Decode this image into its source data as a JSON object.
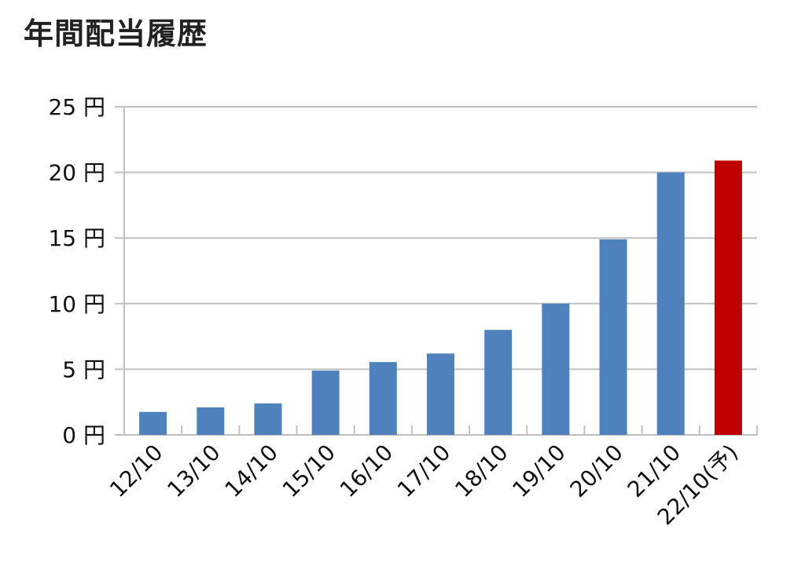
{
  "title": "年間配当履歴",
  "chart_data": {
    "type": "bar",
    "title": "年間配当履歴",
    "xlabel": "",
    "ylabel": "",
    "categories": [
      "12/10",
      "13/10",
      "14/10",
      "15/10",
      "16/10",
      "17/10",
      "18/10",
      "19/10",
      "20/10",
      "21/10",
      "22/10(予)"
    ],
    "values": [
      1.75,
      2.1,
      2.4,
      4.9,
      5.55,
      6.2,
      8.0,
      10.0,
      14.9,
      20.0,
      20.9
    ],
    "bar_colors": [
      "#4f81bd",
      "#4f81bd",
      "#4f81bd",
      "#4f81bd",
      "#4f81bd",
      "#4f81bd",
      "#4f81bd",
      "#4f81bd",
      "#4f81bd",
      "#4f81bd",
      "#c00000"
    ],
    "ylim": [
      0,
      25
    ],
    "yticks": [
      0,
      5,
      10,
      15,
      20,
      25
    ],
    "ytick_labels": [
      "0 円",
      "5 円",
      "10 円",
      "15 円",
      "20 円",
      "25 円"
    ],
    "grid": true,
    "legend": "none"
  }
}
